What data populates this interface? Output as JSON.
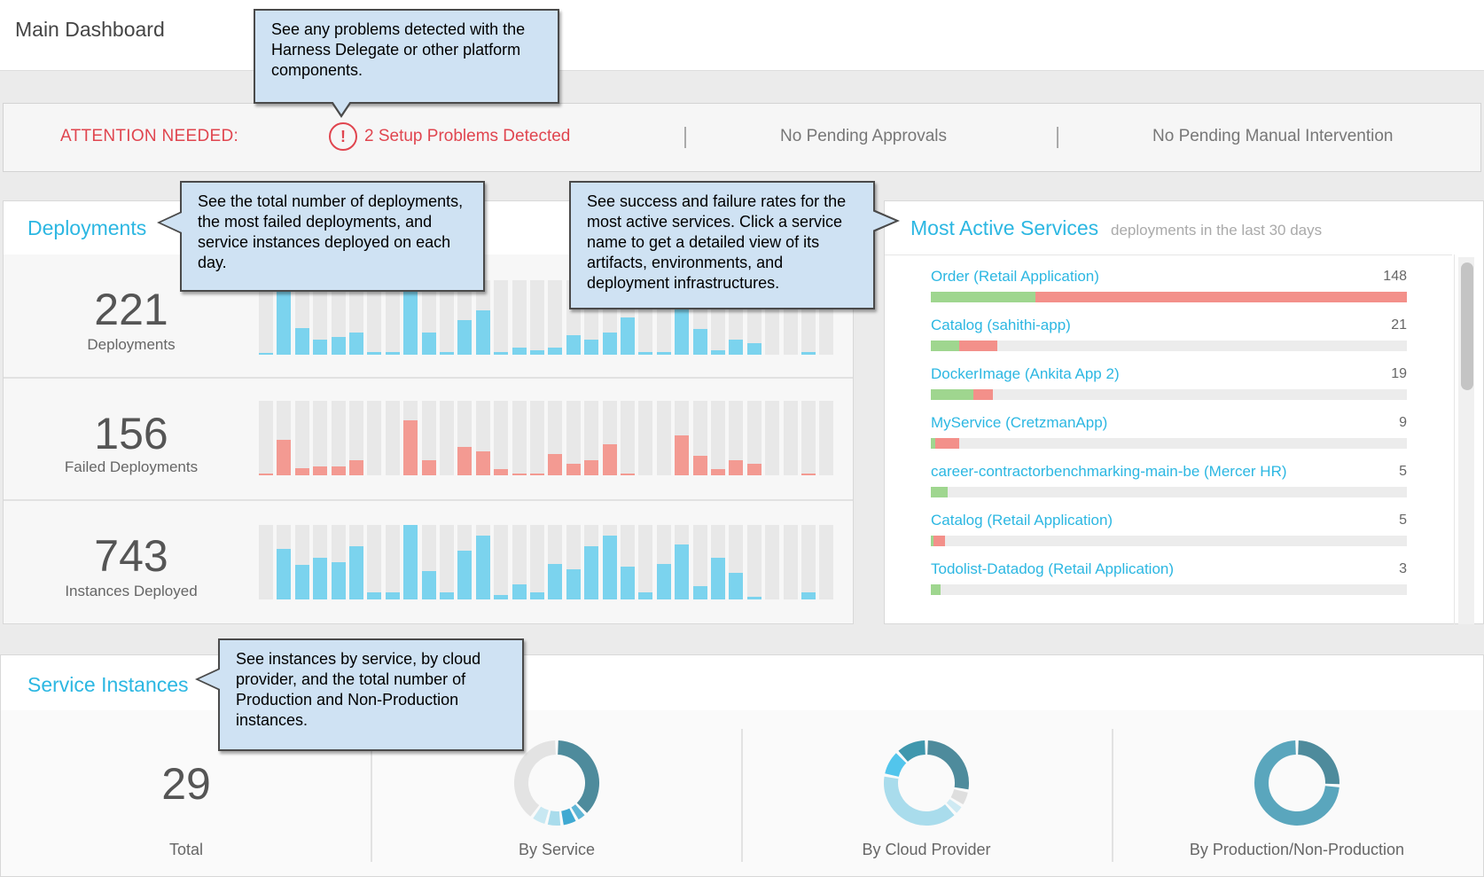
{
  "header": {
    "title": "Main Dashboard"
  },
  "attention": {
    "label": "ATTENTION NEEDED:",
    "problems_icon": "alert-circle-icon",
    "problems": "2 Setup Problems Detected",
    "approvals": "No Pending Approvals",
    "manual": "No Pending Manual Intervention"
  },
  "deployments": {
    "title": "Deployments",
    "metrics": [
      {
        "value": "221",
        "label": "Deployments",
        "color": "#7bd3ee",
        "bars": [
          0.02,
          0.88,
          0.36,
          0.2,
          0.24,
          0.3,
          0.04,
          0.04,
          0.92,
          0.3,
          0.04,
          0.46,
          0.6,
          0.04,
          0.1,
          0.06,
          0.1,
          0.26,
          0.2,
          0.3,
          0.5,
          0.04,
          0.04,
          0.62,
          0.34,
          0.06,
          0.2,
          0.16,
          0,
          0,
          0.04,
          0
        ]
      },
      {
        "value": "156",
        "label": "Failed Deployments",
        "color": "#f39a92",
        "bars": [
          0.02,
          0.48,
          0.1,
          0.12,
          0.12,
          0.2,
          0,
          0,
          0.74,
          0.2,
          0,
          0.38,
          0.32,
          0.08,
          0.02,
          0.02,
          0.28,
          0.16,
          0.2,
          0.42,
          0.02,
          0,
          0,
          0.54,
          0.26,
          0.08,
          0.2,
          0.16,
          0,
          0,
          0.02,
          0
        ]
      },
      {
        "value": "743",
        "label": "Instances Deployed",
        "color": "#7bd3ee",
        "bars": [
          0,
          0.68,
          0.46,
          0.56,
          0.5,
          0.72,
          0.1,
          0.1,
          1,
          0.38,
          0.1,
          0.66,
          0.86,
          0.06,
          0.2,
          0.1,
          0.48,
          0.4,
          0.72,
          0.86,
          0.44,
          0.1,
          0.48,
          0.74,
          0.18,
          0.56,
          0.36,
          0.04,
          0,
          0,
          0.1,
          0
        ]
      }
    ]
  },
  "most_active": {
    "title": "Most Active Services",
    "subtitle": "deployments in the last 30 days",
    "services": [
      {
        "name": "Order (Retail Application)",
        "count": "148",
        "success": 0.22,
        "failed": 0.78
      },
      {
        "name": "Catalog (sahithi-app)",
        "count": "21",
        "success": 0.06,
        "failed": 0.08
      },
      {
        "name": "DockerImage (Ankita App 2)",
        "count": "19",
        "success": 0.09,
        "failed": 0.04
      },
      {
        "name": "MyService (CretzmanApp)",
        "count": "9",
        "success": 0.01,
        "failed": 0.05
      },
      {
        "name": "career-contractorbenchmarking-main-be (Mercer HR)",
        "count": "5",
        "success": 0.035,
        "failed": 0
      },
      {
        "name": "Catalog (Retail Application)",
        "count": "5",
        "success": 0.005,
        "failed": 0.025
      },
      {
        "name": "Todolist-Datadog (Retail Application)",
        "count": "3",
        "success": 0.02,
        "failed": 0
      }
    ]
  },
  "service_instances": {
    "title": "Service Instances",
    "total": "29",
    "total_label": "Total",
    "by_service_label": "By Service",
    "by_cloud_label": "By Cloud Provider",
    "by_prod_label": "By Production/Non-Production",
    "by_service": [
      {
        "share": 0.38,
        "color": "#4e8b9c"
      },
      {
        "share": 0.04,
        "color": "#5fb6d6"
      },
      {
        "share": 0.06,
        "color": "#3fa9d2"
      },
      {
        "share": 0.06,
        "color": "#a9dcec"
      },
      {
        "share": 0.06,
        "color": "#c8e8f2"
      },
      {
        "share": 0.4,
        "color": "#e3e3e3"
      }
    ],
    "by_cloud": [
      {
        "share": 0.28,
        "color": "#4e8b9c"
      },
      {
        "share": 0.06,
        "color": "#dedede"
      },
      {
        "share": 0.04,
        "color": "#cfeaf3"
      },
      {
        "share": 0.4,
        "color": "#a9dcec"
      },
      {
        "share": 0.1,
        "color": "#52c5ec"
      },
      {
        "share": 0.12,
        "color": "#3f97ad"
      }
    ],
    "by_prod": [
      {
        "share": 0.26,
        "color": "#4e8b9c"
      },
      {
        "share": 0.74,
        "color": "#5aa6bd"
      }
    ]
  },
  "callouts": {
    "problems": "See any problems detected with the Harness Delegate or other platform components.",
    "deployments": "See the total number of deployments, the most failed deployments, and service instances deployed on each day.",
    "services": "See success and failure rates for the most active services. Click a service name to get a detailed view of its artifacts, environments, and deployment infrastructures.",
    "instances": "See instances by service, by cloud provider, and the total number of Production and Non-Production instances."
  }
}
